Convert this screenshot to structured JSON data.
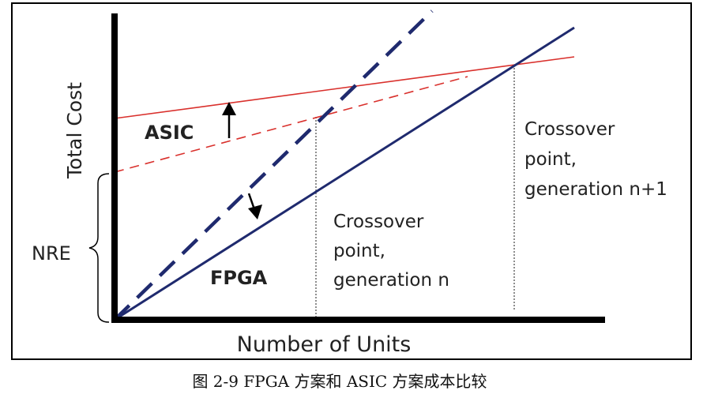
{
  "diagram": {
    "y_axis_label": "Total Cost",
    "x_axis_label": "Number of Units",
    "nre_label": "NRE",
    "asic_label": "ASIC",
    "fpga_label": "FPGA",
    "crossover_n": [
      "Crossover",
      "point,",
      "generation n"
    ],
    "crossover_n1": [
      "Crossover",
      "point,",
      "generation n+1"
    ],
    "caption": "图 2-9  FPGA 方案和 ASIC 方案成本比较",
    "colors": {
      "asic": "#d9302c",
      "fpga": "#1f2a6e",
      "axis": "#000000"
    }
  }
}
